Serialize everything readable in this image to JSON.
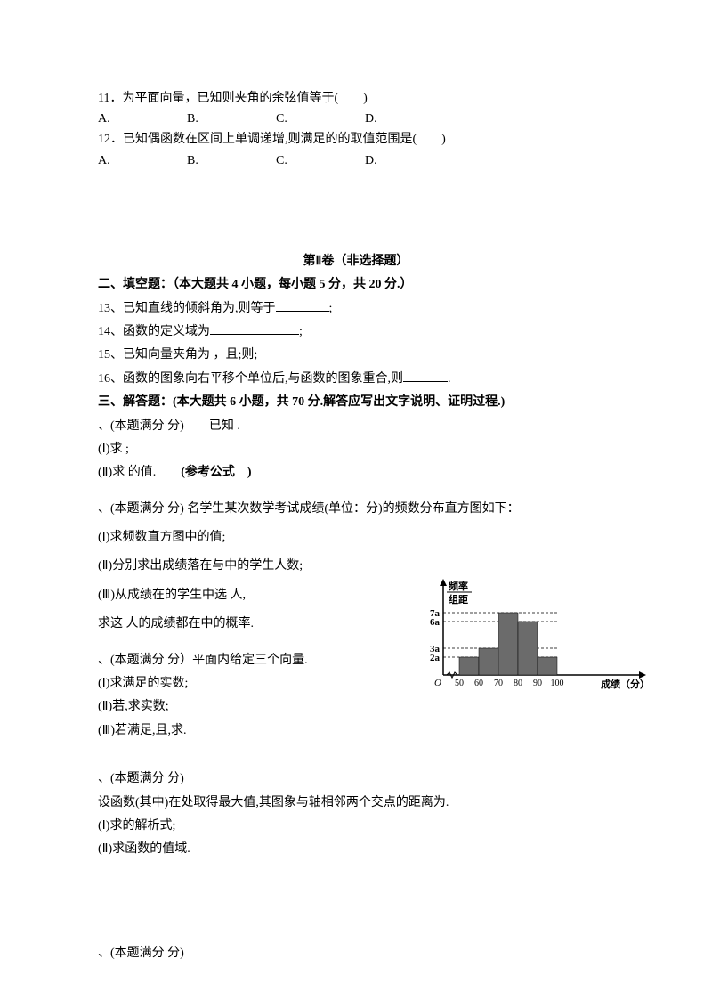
{
  "q11": {
    "text": "11．为平面向量，已知则夹角的余弦值等于(　　)",
    "opts": [
      "A.",
      "B.",
      "C.",
      "D."
    ]
  },
  "q12": {
    "text": "12．已知偶函数在区间上单调递增,则满足的的取值范围是(　　)",
    "opts": [
      "A.",
      "B.",
      "C.",
      "D."
    ]
  },
  "part2_title": "第Ⅱ卷（非选择题）",
  "sec2_title": "二、填空题：（本大题共 4 小题，每小题 5 分，共 20 分.）",
  "q13": "13、已知直线的倾斜角为,则等于",
  "q13_tail": ";",
  "q14": "14、函数的定义域为",
  "q14_tail": ";",
  "q15": "15、已知向量夹角为 ，且;则;",
  "q16": "16、函数的图象向右平移个单位后,与函数的图象重合,则",
  "q16_tail": ".",
  "sec3_title": "三、解答题：(本大题共 6 小题，共 70 分.解答应写出文字说明、证明过程.)",
  "p17_l1": "、(本题满分 分)　　已知 .",
  "p17_l2": "(Ⅰ)求  ;",
  "p17_l3": "(Ⅱ)求  的值.　　",
  "p17_ref": "(参考公式　)",
  "p18_l1": "、(本题满分 分)  名学生某次数学考试成绩(单位：分)的频数分布直方图如下：",
  "p18_l2": "(Ⅰ)求频数直方图中的值;",
  "p18_l3": "(Ⅱ)分别求出成绩落在与中的学生人数;",
  "p18_l4": "(Ⅲ)从成绩在的学生中选 人,",
  "p18_l5": "求这 人的成绩都在中的概率.",
  "p19_l1": "、(本题满分 分）平面内给定三个向量.",
  "p19_l2": "(Ⅰ)求满足的实数;",
  "p19_l3": "(Ⅱ)若,求实数;",
  "p19_l4": "(Ⅲ)若满足,且,求.",
  "p20_l1": "、(本题满分 分)",
  "p20_l2": "设函数(其中)在处取得最大值,其图象与轴相邻两个交点的距离为.",
  "p20_l3": "(Ⅰ)求的解析式;",
  "p20_l4": "(Ⅱ)求函数的值域.",
  "p21_l1": "、(本题满分 分)",
  "chart": {
    "ylabel_top": "频率",
    "ylabel_bot": "组距",
    "xlabel": "成绩（分）",
    "yticks": [
      "7a",
      "6a",
      "3a",
      "2a"
    ],
    "xticks": [
      "50",
      "60",
      "70",
      "80",
      "90",
      "100"
    ],
    "heights": [
      2,
      3,
      7,
      6,
      2
    ],
    "bar_color": "#6b6b6b",
    "axis_color": "#000000",
    "dash_color": "#000000",
    "font_size": 11
  },
  "fontsize_body": 14
}
